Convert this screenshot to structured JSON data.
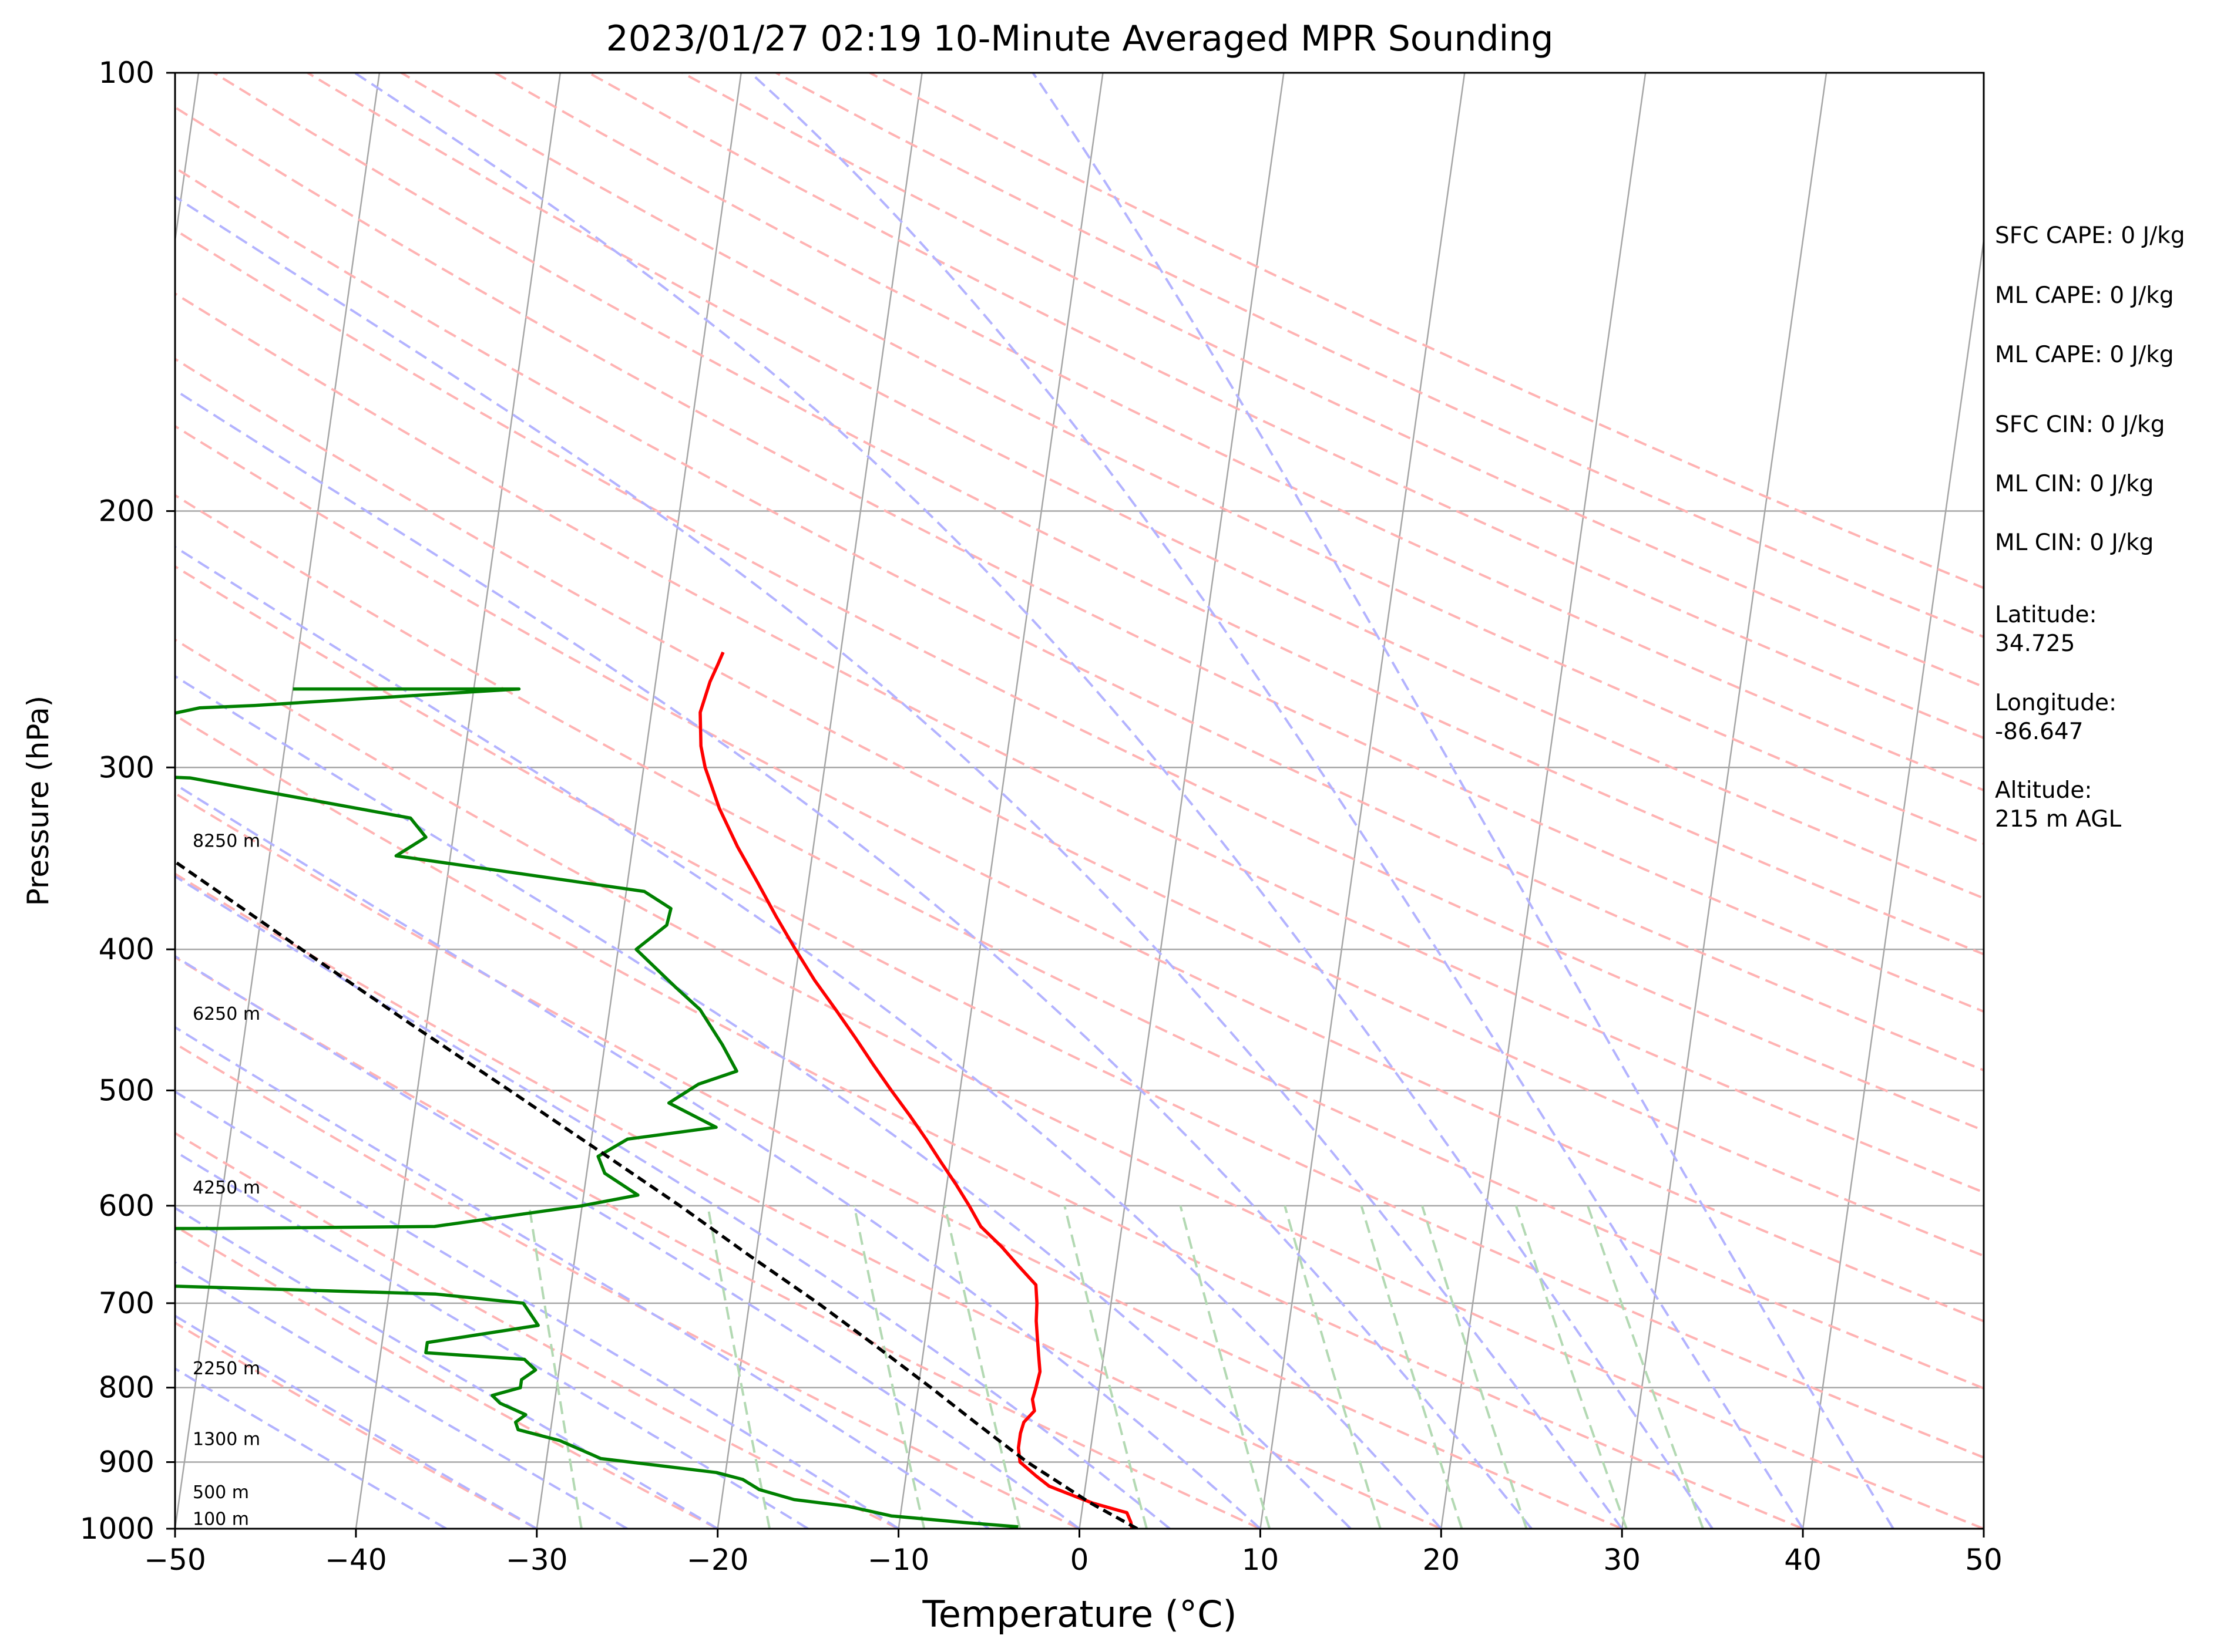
{
  "chart_data": {
    "type": "line",
    "title": "2023/01/27 02:19 10-Minute Averaged MPR Sounding",
    "xlabel": "Temperature (°C)",
    "ylabel": "Pressure (hPa)",
    "xlim": [
      -50,
      50
    ],
    "ylim": [
      1000,
      100
    ],
    "y_scale": "log",
    "skew_T": true,
    "x_ticks": [
      -50,
      -40,
      -30,
      -20,
      -10,
      0,
      10,
      20,
      30,
      40,
      50
    ],
    "x_tick_labels": [
      "−50",
      "−40",
      "−30",
      "−20",
      "−10",
      "0",
      "10",
      "20",
      "30",
      "40",
      "50"
    ],
    "y_ticks": [
      1000,
      900,
      800,
      700,
      600,
      500,
      400,
      300,
      200,
      100
    ],
    "y_tick_labels": [
      "1000",
      "900",
      "800",
      "700",
      "600",
      "500",
      "400",
      "300",
      "200",
      "100"
    ],
    "isobar_gridlines": [
      900,
      800,
      700,
      600,
      500,
      400,
      300,
      200
    ],
    "height_labels": [
      {
        "p": 985,
        "text": "100 m"
      },
      {
        "p": 944,
        "text": "500 m"
      },
      {
        "p": 868,
        "text": "1300 m"
      },
      {
        "p": 776,
        "text": "2250 m"
      },
      {
        "p": 583,
        "text": "4250 m"
      },
      {
        "p": 443,
        "text": "6250 m"
      },
      {
        "p": 337,
        "text": "8250 m"
      }
    ],
    "colors": {
      "temperature": "#ff0000",
      "dewpoint": "#008000",
      "parcel": "#000000",
      "dry_adiabats": "#ffb3b3",
      "moist_adiabats": "#b3b3ff",
      "mixing_ratio": "#b3d9b3",
      "isotherms": "#a6a6a6"
    },
    "series": [
      {
        "key": "temperature",
        "points": [
          [
            1000,
            2.9
          ],
          [
            990,
            2.8
          ],
          [
            975,
            2.5
          ],
          [
            960,
            0.5
          ],
          [
            945,
            -1.0
          ],
          [
            935,
            -2.0
          ],
          [
            920,
            -2.8
          ],
          [
            900,
            -3.8
          ],
          [
            880,
            -4.0
          ],
          [
            860,
            -4.0
          ],
          [
            845,
            -3.9
          ],
          [
            830,
            -3.4
          ],
          [
            815,
            -3.6
          ],
          [
            800,
            -3.5
          ],
          [
            780,
            -3.4
          ],
          [
            760,
            -3.6
          ],
          [
            740,
            -3.8
          ],
          [
            720,
            -4.0
          ],
          [
            700,
            -4.1
          ],
          [
            680,
            -4.3
          ],
          [
            660,
            -5.4
          ],
          [
            640,
            -6.5
          ],
          [
            620,
            -7.8
          ],
          [
            600,
            -8.6
          ],
          [
            580,
            -9.5
          ],
          [
            560,
            -10.5
          ],
          [
            540,
            -11.5
          ],
          [
            520,
            -12.6
          ],
          [
            500,
            -13.8
          ],
          [
            480,
            -15.0
          ],
          [
            460,
            -16.2
          ],
          [
            440,
            -17.5
          ],
          [
            420,
            -18.9
          ],
          [
            400,
            -20.2
          ],
          [
            380,
            -21.5
          ],
          [
            360,
            -22.8
          ],
          [
            340,
            -24.2
          ],
          [
            320,
            -25.5
          ],
          [
            300,
            -26.6
          ],
          [
            290,
            -27.0
          ],
          [
            275,
            -27.3
          ],
          [
            262,
            -27.0
          ],
          [
            255,
            -26.7
          ],
          [
            250,
            -26.5
          ]
        ]
      },
      {
        "key": "dewpoint",
        "points": [
          [
            997,
            -3.4
          ],
          [
            990,
            -6.5
          ],
          [
            980,
            -10.5
          ],
          [
            965,
            -13.0
          ],
          [
            955,
            -16.0
          ],
          [
            940,
            -18.0
          ],
          [
            925,
            -19.0
          ],
          [
            915,
            -20.5
          ],
          [
            895,
            -27.0
          ],
          [
            870,
            -29.4
          ],
          [
            855,
            -31.8
          ],
          [
            845,
            -32.0
          ],
          [
            835,
            -31.5
          ],
          [
            820,
            -33.0
          ],
          [
            810,
            -33.5
          ],
          [
            800,
            -32.0
          ],
          [
            790,
            -32.0
          ],
          [
            778,
            -31.3
          ],
          [
            765,
            -32.0
          ],
          [
            757,
            -37.5
          ],
          [
            745,
            -37.5
          ],
          [
            725,
            -31.5
          ],
          [
            700,
            -32.5
          ],
          [
            690,
            -37.4
          ],
          [
            672,
            -68.0
          ],
          [
            622,
            -88.0
          ],
          [
            622,
            -50.0
          ],
          [
            620,
            -38.0
          ],
          [
            600,
            -30.0
          ],
          [
            590,
            -27.0
          ],
          [
            570,
            -29.0
          ],
          [
            555,
            -29.5
          ],
          [
            540,
            -28.0
          ],
          [
            530,
            -23.2
          ],
          [
            510,
            -26.0
          ],
          [
            495,
            -24.5
          ],
          [
            485,
            -22.5
          ],
          [
            465,
            -23.5
          ],
          [
            440,
            -25.0
          ],
          [
            425,
            -26.5
          ],
          [
            400,
            -29.0
          ],
          [
            385,
            -27.5
          ],
          [
            375,
            -27.4
          ],
          [
            365,
            -29.0
          ],
          [
            345,
            -43.0
          ],
          [
            335,
            -41.5
          ],
          [
            325,
            -42.5
          ],
          [
            305,
            -55.0
          ],
          [
            300,
            -70.0
          ],
          [
            273,
            -55.0
          ],
          [
            272,
            -52.0
          ],
          [
            265,
            -37.5
          ],
          [
            265,
            -50.0
          ]
        ]
      },
      {
        "key": "parcel",
        "points": [
          [
            1000,
            3.2
          ],
          [
            960,
            0.4
          ],
          [
            920,
            -2.1
          ],
          [
            900,
            -3.4
          ],
          [
            850,
            -6.3
          ],
          [
            800,
            -9.3
          ],
          [
            750,
            -12.6
          ],
          [
            700,
            -16.2
          ],
          [
            650,
            -20.3
          ],
          [
            600,
            -24.6
          ],
          [
            550,
            -29.5
          ],
          [
            500,
            -34.9
          ],
          [
            450,
            -40.9
          ],
          [
            400,
            -47.5
          ],
          [
            350,
            -54.9
          ],
          [
            300,
            -63.5
          ],
          [
            280,
            -67.2
          ]
        ]
      }
    ]
  },
  "info_panel": {
    "sfc_cape": "SFC CAPE: 0 J/kg",
    "ml_cape_1": "ML CAPE: 0 J/kg",
    "ml_cape_2": "ML CAPE: 0 J/kg",
    "sfc_cin": "SFC CIN: 0 J/kg",
    "ml_cin_1": "ML CIN: 0 J/kg",
    "ml_cin_2": "ML CIN: 0 J/kg",
    "latitude_label": "Latitude:",
    "latitude_value": "34.725",
    "longitude_label": "Longitude:",
    "longitude_value": "-86.647",
    "altitude_label": "Altitude:",
    "altitude_value": "215 m AGL"
  }
}
